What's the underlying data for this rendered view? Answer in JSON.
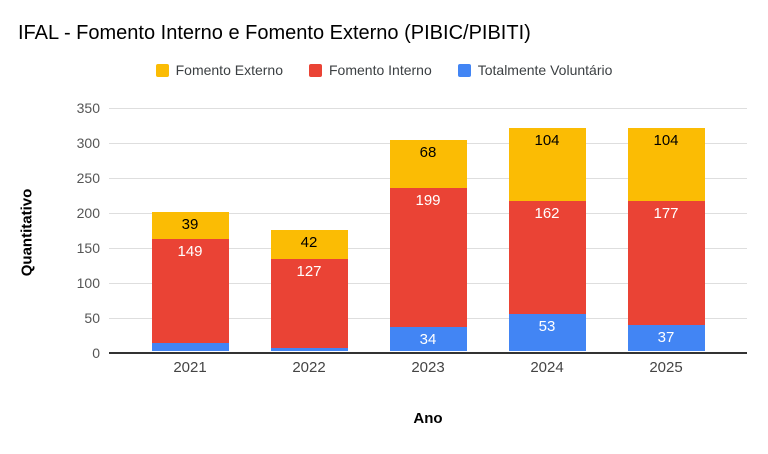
{
  "chart_data": {
    "type": "bar",
    "stacked": true,
    "title": "IFAL - Fomento Interno e Fomento Externo (PIBIC/PIBITI)",
    "xlabel": "Ano",
    "ylabel": "Quantitativo",
    "categories": [
      "2021",
      "2022",
      "2023",
      "2024",
      "2025"
    ],
    "series": [
      {
        "name": "Totalmente Voluntário",
        "color": "#4285f4",
        "label_style": "light",
        "values": [
          11,
          4,
          34,
          53,
          37
        ]
      },
      {
        "name": "Fomento Interno",
        "color": "#ea4335",
        "label_style": "light",
        "values": [
          149,
          127,
          199,
          162,
          177
        ]
      },
      {
        "name": "Fomento Externo",
        "color": "#fbbc04",
        "label_style": "dark",
        "values": [
          39,
          42,
          68,
          104,
          104
        ]
      }
    ],
    "legend": {
      "position": "top",
      "items": [
        {
          "label": "Fomento Externo",
          "color": "#fbbc04"
        },
        {
          "label": "Fomento Interno",
          "color": "#ea4335"
        },
        {
          "label": "Totalmente Voluntário",
          "color": "#4285f4"
        }
      ]
    },
    "ylim": [
      0,
      350
    ],
    "ytick_step": 50,
    "grid": true,
    "colors": {
      "gridline": "#dedede",
      "baseline": "#333333",
      "ytick_text": "#555555",
      "xtick_text": "#444444",
      "title_text": "#000000"
    }
  }
}
